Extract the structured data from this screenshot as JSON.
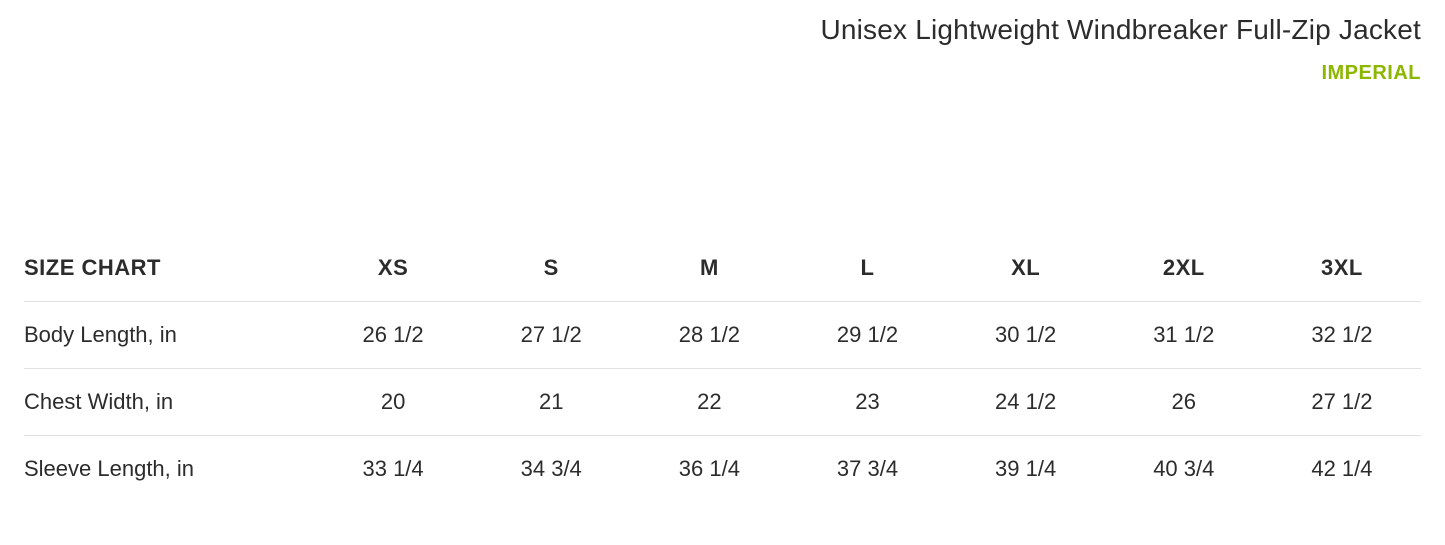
{
  "header": {
    "title": "Unisex Lightweight Windbreaker Full-Zip Jacket",
    "unit_label": "IMPERIAL",
    "unit_color": "#8db600"
  },
  "size_chart": {
    "type": "table",
    "label": "SIZE CHART",
    "columns": [
      "XS",
      "S",
      "M",
      "L",
      "XL",
      "2XL",
      "3XL"
    ],
    "rows": [
      {
        "label": "Body Length, in",
        "values": [
          "26 1/2",
          "27 1/2",
          "28 1/2",
          "29 1/2",
          "30 1/2",
          "31 1/2",
          "32 1/2"
        ]
      },
      {
        "label": "Chest Width, in",
        "values": [
          "20",
          "21",
          "22",
          "23",
          "24 1/2",
          "26",
          "27 1/2"
        ]
      },
      {
        "label": "Sleeve Length, in",
        "values": [
          "33 1/4",
          "34 3/4",
          "36 1/4",
          "37 3/4",
          "39 1/4",
          "40 3/4",
          "42 1/4"
        ]
      }
    ],
    "border_color": "#e1e1e1",
    "header_fontweight": 700,
    "cell_fontsize": 22
  }
}
